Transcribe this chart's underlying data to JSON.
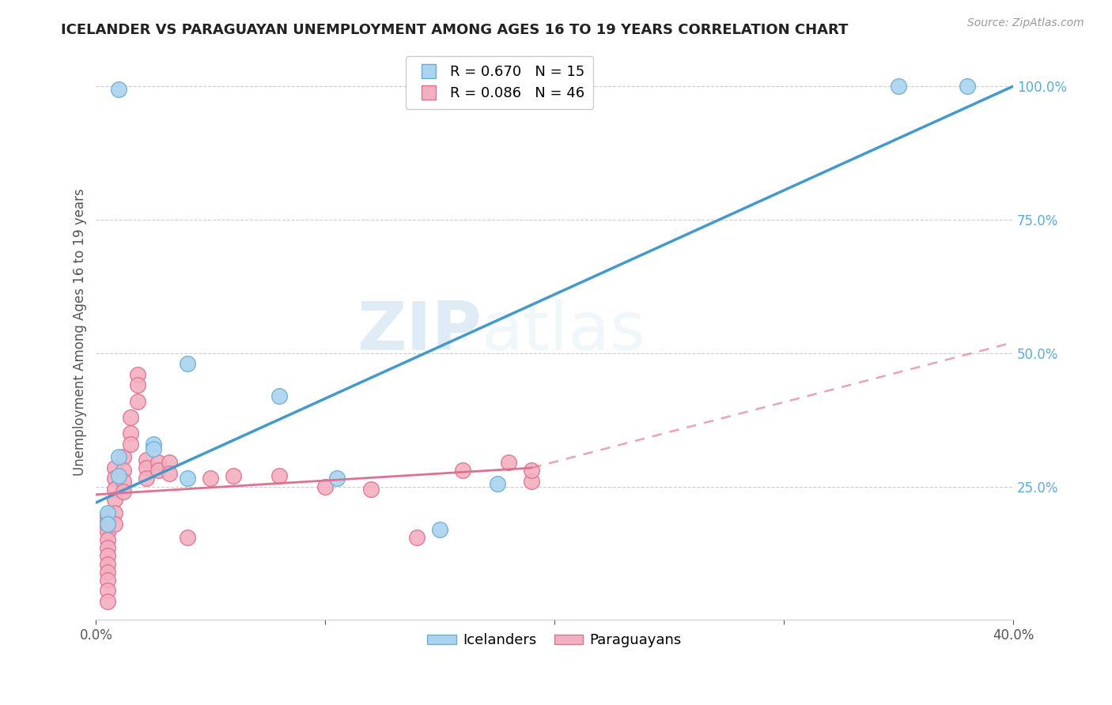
{
  "title": "ICELANDER VS PARAGUAYAN UNEMPLOYMENT AMONG AGES 16 TO 19 YEARS CORRELATION CHART",
  "source": "Source: ZipAtlas.com",
  "ylabel": "Unemployment Among Ages 16 to 19 years",
  "xlim": [
    0.0,
    0.4
  ],
  "ylim": [
    0.0,
    1.08
  ],
  "watermark_text": "ZIP",
  "watermark_text2": "atlas",
  "icelander_color": "#aad4f0",
  "icelander_edge_color": "#6aaed6",
  "paraguayan_color": "#f4afc0",
  "paraguayan_edge_color": "#e07090",
  "trend_iceland_color": "#4499cc",
  "trend_paraguay_color": "#e07090",
  "R_iceland": 0.67,
  "N_iceland": 15,
  "R_paraguay": 0.086,
  "N_paraguay": 46,
  "iceland_x": [
    0.005,
    0.005,
    0.01,
    0.01,
    0.01,
    0.025,
    0.025,
    0.04,
    0.04,
    0.08,
    0.105,
    0.15,
    0.175,
    0.35,
    0.38
  ],
  "iceland_y": [
    0.2,
    0.18,
    0.995,
    0.305,
    0.27,
    0.33,
    0.32,
    0.48,
    0.265,
    0.42,
    0.265,
    0.17,
    0.255,
    1.0,
    1.0
  ],
  "paraguay_x": [
    0.005,
    0.005,
    0.005,
    0.005,
    0.005,
    0.005,
    0.005,
    0.005,
    0.005,
    0.005,
    0.005,
    0.005,
    0.008,
    0.008,
    0.008,
    0.008,
    0.008,
    0.008,
    0.012,
    0.012,
    0.012,
    0.012,
    0.015,
    0.015,
    0.015,
    0.018,
    0.018,
    0.018,
    0.022,
    0.022,
    0.022,
    0.027,
    0.027,
    0.032,
    0.032,
    0.04,
    0.05,
    0.06,
    0.08,
    0.1,
    0.12,
    0.14,
    0.16,
    0.18,
    0.19,
    0.19
  ],
  "paraguay_y": [
    0.195,
    0.185,
    0.175,
    0.165,
    0.15,
    0.135,
    0.12,
    0.105,
    0.09,
    0.075,
    0.055,
    0.035,
    0.285,
    0.265,
    0.245,
    0.225,
    0.2,
    0.18,
    0.305,
    0.28,
    0.26,
    0.24,
    0.38,
    0.35,
    0.33,
    0.46,
    0.44,
    0.41,
    0.3,
    0.285,
    0.265,
    0.295,
    0.28,
    0.295,
    0.275,
    0.155,
    0.265,
    0.27,
    0.27,
    0.25,
    0.245,
    0.155,
    0.28,
    0.295,
    0.26,
    0.28
  ],
  "trend_ice_x0": 0.0,
  "trend_ice_x1": 0.4,
  "trend_ice_y0": 0.22,
  "trend_ice_y1": 1.0,
  "trend_par_solid_x0": 0.0,
  "trend_par_solid_x1": 0.19,
  "trend_par_dashed_x0": 0.19,
  "trend_par_dashed_x1": 0.4,
  "trend_par_y0": 0.235,
  "trend_par_y1_solid": 0.285,
  "trend_par_y1_dashed": 0.52
}
